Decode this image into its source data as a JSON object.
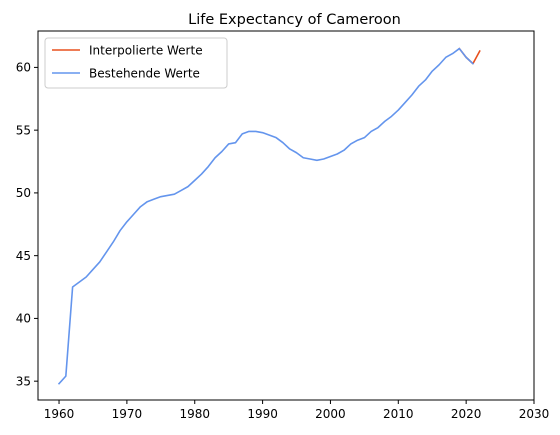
{
  "chart_data": {
    "type": "line",
    "title": "Life Expectancy of Cameroon",
    "xlabel": "",
    "ylabel": "",
    "xlim": [
      1956.9,
      2030
    ],
    "ylim": [
      33.5,
      62.9
    ],
    "xticks": [
      1960,
      1970,
      1980,
      1990,
      2000,
      2010,
      2020,
      2030
    ],
    "yticks": [
      35,
      40,
      45,
      50,
      55,
      60
    ],
    "legend_position": "top-left",
    "grid": false,
    "series": [
      {
        "name": "Interpolierte Werte",
        "color": "#e8501e",
        "x": [
          2019,
          2020,
          2021,
          2022
        ],
        "y": [
          61.5,
          60.8,
          60.3,
          61.3
        ]
      },
      {
        "name": "Bestehende Werte",
        "color": "#6495ed",
        "x": [
          1960,
          1961,
          1962,
          1963,
          1964,
          1965,
          1966,
          1967,
          1968,
          1969,
          1970,
          1971,
          1972,
          1973,
          1974,
          1975,
          1976,
          1977,
          1978,
          1979,
          1980,
          1981,
          1982,
          1983,
          1984,
          1985,
          1986,
          1987,
          1988,
          1989,
          1990,
          1991,
          1992,
          1993,
          1994,
          1995,
          1996,
          1997,
          1998,
          1999,
          2000,
          2001,
          2002,
          2003,
          2004,
          2005,
          2006,
          2007,
          2008,
          2009,
          2010,
          2011,
          2012,
          2013,
          2014,
          2015,
          2016,
          2017,
          2018,
          2019,
          2020,
          2021
        ],
        "y": [
          34.8,
          35.4,
          42.5,
          42.9,
          43.3,
          43.9,
          44.5,
          45.3,
          46.1,
          47.0,
          47.7,
          48.3,
          48.9,
          49.3,
          49.5,
          49.7,
          49.8,
          49.9,
          50.2,
          50.5,
          51.0,
          51.5,
          52.1,
          52.8,
          53.3,
          53.9,
          54.0,
          54.7,
          54.9,
          54.9,
          54.8,
          54.6,
          54.4,
          54.0,
          53.5,
          53.2,
          52.8,
          52.7,
          52.6,
          52.7,
          52.9,
          53.1,
          53.4,
          53.9,
          54.2,
          54.4,
          54.9,
          55.2,
          55.7,
          56.1,
          56.6,
          57.2,
          57.8,
          58.5,
          59.0,
          59.7,
          60.2,
          60.8,
          61.1,
          61.5,
          60.8,
          60.3
        ]
      }
    ]
  }
}
